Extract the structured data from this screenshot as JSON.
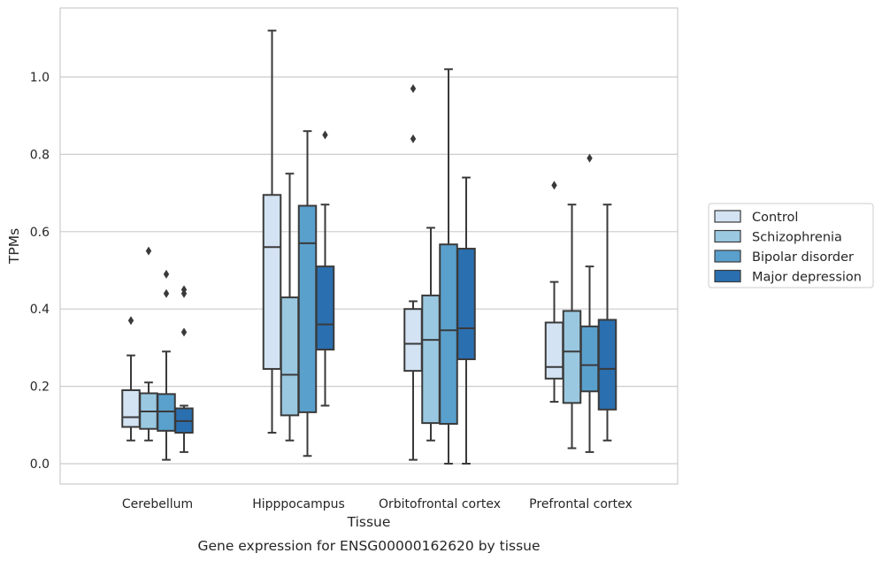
{
  "chart_data": {
    "type": "box",
    "caption": "Gene expression for ENSG00000162620 by tissue",
    "xlabel": "Tissue",
    "ylabel": "TPMs",
    "ylim": [
      -0.055,
      1.18
    ],
    "yticks": [
      0.0,
      0.2,
      0.4,
      0.6,
      0.8,
      1.0
    ],
    "ytick_labels": [
      "0.0",
      "0.2",
      "0.4",
      "0.6",
      "0.8",
      "1.0"
    ],
    "grid": "horizontal",
    "legend_position": "right",
    "categories": [
      "Cerebellum",
      "Hipppocampus",
      "Orbitofrontal cortex",
      "Prefrontal cortex"
    ],
    "series": [
      {
        "name": "Control",
        "color": "#d3e3f3",
        "boxes": [
          {
            "whislo": 0.06,
            "q1": 0.095,
            "med": 0.12,
            "q3": 0.19,
            "whishi": 0.28,
            "fliers": [
              0.37
            ]
          },
          {
            "whislo": 0.08,
            "q1": 0.245,
            "med": 0.56,
            "q3": 0.695,
            "whishi": 1.12,
            "fliers": []
          },
          {
            "whislo": 0.01,
            "q1": 0.24,
            "med": 0.31,
            "q3": 0.4,
            "whishi": 0.42,
            "fliers": [
              0.84,
              0.97
            ]
          },
          {
            "whislo": 0.16,
            "q1": 0.22,
            "med": 0.25,
            "q3": 0.365,
            "whishi": 0.47,
            "fliers": [
              0.72
            ]
          }
        ]
      },
      {
        "name": "Schizophrenia",
        "color": "#9ac8e0",
        "boxes": [
          {
            "whislo": 0.06,
            "q1": 0.09,
            "med": 0.135,
            "q3": 0.182,
            "whishi": 0.21,
            "fliers": [
              0.55
            ]
          },
          {
            "whislo": 0.06,
            "q1": 0.125,
            "med": 0.23,
            "q3": 0.43,
            "whishi": 0.75,
            "fliers": []
          },
          {
            "whislo": 0.06,
            "q1": 0.105,
            "med": 0.32,
            "q3": 0.435,
            "whishi": 0.61,
            "fliers": []
          },
          {
            "whislo": 0.04,
            "q1": 0.157,
            "med": 0.29,
            "q3": 0.395,
            "whishi": 0.67,
            "fliers": []
          }
        ]
      },
      {
        "name": "Bipolar disorder",
        "color": "#5aa0cd",
        "boxes": [
          {
            "whislo": 0.01,
            "q1": 0.085,
            "med": 0.135,
            "q3": 0.18,
            "whishi": 0.29,
            "fliers": [
              0.44,
              0.49
            ]
          },
          {
            "whislo": 0.02,
            "q1": 0.133,
            "med": 0.57,
            "q3": 0.667,
            "whishi": 0.86,
            "fliers": []
          },
          {
            "whislo": 0.0,
            "q1": 0.103,
            "med": 0.345,
            "q3": 0.567,
            "whishi": 1.02,
            "fliers": []
          },
          {
            "whislo": 0.03,
            "q1": 0.187,
            "med": 0.255,
            "q3": 0.355,
            "whishi": 0.51,
            "fliers": [
              0.79
            ]
          }
        ]
      },
      {
        "name": "Major depression",
        "color": "#2a6fb0",
        "boxes": [
          {
            "whislo": 0.03,
            "q1": 0.08,
            "med": 0.11,
            "q3": 0.143,
            "whishi": 0.15,
            "fliers": [
              0.34,
              0.44,
              0.45
            ]
          },
          {
            "whislo": 0.15,
            "q1": 0.295,
            "med": 0.36,
            "q3": 0.51,
            "whishi": 0.67,
            "fliers": [
              0.85
            ]
          },
          {
            "whislo": 0.0,
            "q1": 0.27,
            "med": 0.35,
            "q3": 0.556,
            "whishi": 0.74,
            "fliers": []
          },
          {
            "whislo": 0.06,
            "q1": 0.14,
            "med": 0.245,
            "q3": 0.372,
            "whishi": 0.67,
            "fliers": []
          }
        ]
      }
    ]
  }
}
